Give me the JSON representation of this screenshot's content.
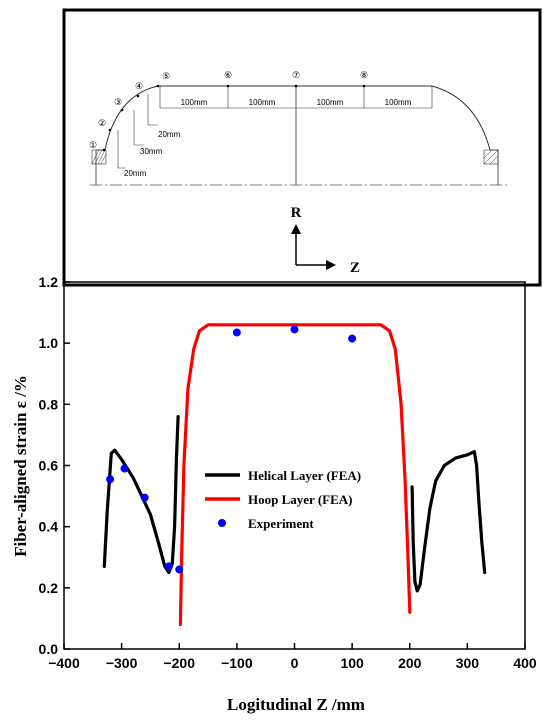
{
  "schematic": {
    "points": [
      "①",
      "②",
      "③",
      "④",
      "⑤",
      "⑥",
      "⑦",
      "⑧"
    ],
    "dims_horizontal": [
      "100mm",
      "100mm",
      "100mm",
      "100mm"
    ],
    "dims_vertical": [
      "20mm",
      "30mm",
      "20mm"
    ],
    "axis_r": "R",
    "axis_z": "Z"
  },
  "chart_data": {
    "type": "line",
    "xlabel": "Logitudinal Z /mm",
    "ylabel": "Fiber-aligned strain   ε /%",
    "xlim": [
      -400,
      400
    ],
    "ylim": [
      0.0,
      1.2
    ],
    "xticks": [
      -400,
      -300,
      -200,
      -100,
      0,
      100,
      200,
      300,
      400
    ],
    "yticks": [
      0.0,
      0.2,
      0.4,
      0.6,
      0.8,
      1.0,
      1.2
    ],
    "xtick_labels": [
      "−400",
      "−300",
      "−200",
      "−100",
      "0",
      "100",
      "200",
      "300",
      "400"
    ],
    "ytick_labels": [
      "0.0",
      "0.2",
      "0.4",
      "0.6",
      "0.8",
      "1.0",
      "1.2"
    ],
    "legend_position": "center-left",
    "series": [
      {
        "name": "Helical Layer (FEA)",
        "color": "#000000",
        "segments": [
          [
            [
              -330,
              0.27
            ],
            [
              -325,
              0.45
            ],
            [
              -318,
              0.64
            ],
            [
              -312,
              0.65
            ],
            [
              -300,
              0.62
            ],
            [
              -280,
              0.56
            ],
            [
              -265,
              0.5
            ],
            [
              -250,
              0.44
            ],
            [
              -235,
              0.34
            ],
            [
              -225,
              0.27
            ],
            [
              -218,
              0.25
            ],
            [
              -212,
              0.28
            ],
            [
              -208,
              0.4
            ],
            [
              -205,
              0.62
            ],
            [
              -202,
              0.76
            ]
          ],
          [
            [
              204,
              0.53
            ],
            [
              206,
              0.35
            ],
            [
              209,
              0.22
            ],
            [
              213,
              0.19
            ],
            [
              218,
              0.21
            ],
            [
              225,
              0.32
            ],
            [
              235,
              0.46
            ],
            [
              245,
              0.55
            ],
            [
              260,
              0.6
            ],
            [
              280,
              0.625
            ],
            [
              300,
              0.635
            ],
            [
              312,
              0.645
            ],
            [
              316,
              0.6
            ],
            [
              320,
              0.48
            ],
            [
              325,
              0.35
            ],
            [
              330,
              0.25
            ]
          ]
        ]
      },
      {
        "name": "Hoop Layer (FEA)",
        "color": "#ff0000",
        "segments": [
          [
            [
              -198,
              0.08
            ],
            [
              -196,
              0.3
            ],
            [
              -192,
              0.6
            ],
            [
              -185,
              0.85
            ],
            [
              -175,
              0.98
            ],
            [
              -165,
              1.04
            ],
            [
              -150,
              1.06
            ],
            [
              -100,
              1.06
            ],
            [
              0,
              1.06
            ],
            [
              100,
              1.06
            ],
            [
              150,
              1.06
            ],
            [
              165,
              1.04
            ],
            [
              175,
              0.98
            ],
            [
              185,
              0.8
            ],
            [
              192,
              0.55
            ],
            [
              197,
              0.3
            ],
            [
              200,
              0.12
            ]
          ]
        ]
      }
    ],
    "experiment": {
      "name": "Experiment",
      "color": "#0000ff",
      "x": [
        -320,
        -295,
        -260,
        -218,
        -200,
        -100,
        0,
        100
      ],
      "y": [
        0.555,
        0.59,
        0.495,
        0.27,
        0.26,
        1.035,
        1.045,
        1.015
      ]
    }
  }
}
